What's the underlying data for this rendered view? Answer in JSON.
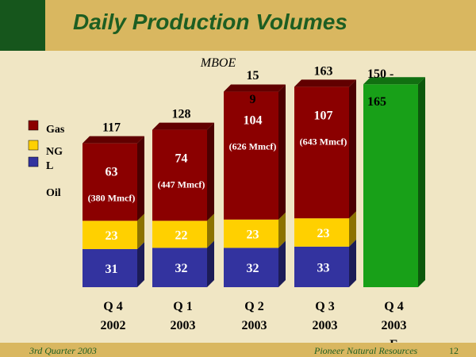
{
  "slide": {
    "title": "Daily Production Volumes",
    "footer_left": "3rd Quarter 2003",
    "footer_right": "Pioneer Natural Resources",
    "page_number": "12"
  },
  "chart_data": {
    "type": "bar",
    "stacked": true,
    "unit_label": "MBOE",
    "legend_placement": "left",
    "legend": [
      {
        "name": "Gas",
        "color": "#8b0000"
      },
      {
        "name": "NGL",
        "color": "#ffd000"
      },
      {
        "name": "Oil",
        "color": "#33339f"
      }
    ],
    "categories": [
      [
        "Q 4",
        "2002"
      ],
      [
        "Q 1",
        "2003"
      ],
      [
        "Q 2",
        "2003"
      ],
      [
        "Q 3",
        "2003"
      ],
      [
        "Q 4",
        "2003",
        "E"
      ]
    ],
    "series": [
      {
        "name": "Oil",
        "color": "#33339f",
        "values": [
          31,
          32,
          32,
          33,
          null
        ],
        "labels": [
          "31",
          "32",
          "32",
          "33",
          ""
        ]
      },
      {
        "name": "NGL",
        "color": "#ffd000",
        "values": [
          23,
          22,
          23,
          23,
          null
        ],
        "labels": [
          "23",
          "22",
          "23",
          "23",
          ""
        ]
      },
      {
        "name": "Gas",
        "color": "#8b0000",
        "values": [
          63,
          74,
          104,
          107,
          null
        ],
        "labels": [
          "63",
          "74",
          "104",
          "107",
          ""
        ],
        "notes": [
          "(380 Mmcf)",
          "(447 Mmcf)",
          "(626 Mmcf)",
          "(643 Mmcf)",
          ""
        ]
      }
    ],
    "estimate": {
      "index": 4,
      "range": [
        150,
        165
      ],
      "color": "#18a018",
      "label_lines": [
        "150 -",
        "165"
      ]
    },
    "totals": [
      [
        "117"
      ],
      [
        "128"
      ],
      [
        "15",
        "9"
      ],
      [
        "163"
      ],
      []
    ],
    "ylim": [
      0,
      170
    ],
    "grid": false
  }
}
